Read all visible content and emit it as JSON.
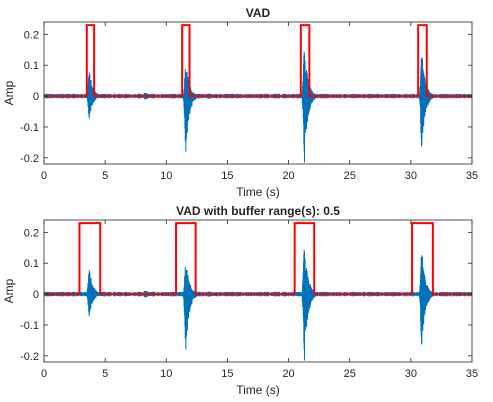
{
  "chart_data": [
    {
      "type": "line",
      "title": "VAD",
      "xlabel": "Time (s)",
      "ylabel": "Amp",
      "xlim": [
        0,
        35
      ],
      "ylim": [
        -0.22,
        0.24
      ],
      "xticks": [
        "0",
        "5",
        "10",
        "15",
        "20",
        "25",
        "30",
        "35"
      ],
      "yticks": [
        "-0.2",
        "-0.1",
        "0",
        "0.1",
        "0.2"
      ],
      "series": [
        {
          "color": "#0072bd",
          "kind": "waveform",
          "noise_amplitude": 0.005,
          "bursts": [
            {
              "t": 3.7,
              "peak_pos": 0.09,
              "peak_neg": -0.08
            },
            {
              "t": 11.6,
              "peak_pos": 0.12,
              "peak_neg": -0.19
            },
            {
              "t": 21.3,
              "peak_pos": 0.17,
              "peak_neg": -0.22
            },
            {
              "t": 30.9,
              "peak_pos": 0.15,
              "peak_neg": -0.18
            }
          ],
          "small_events": [
            {
              "t": 8.3,
              "peak": 0.01
            },
            {
              "t": 13.5,
              "peak": 0.008
            },
            {
              "t": 15.9,
              "peak": 0.006
            }
          ]
        },
        {
          "color": "#ff0000",
          "kind": "step",
          "low": 0,
          "high": 0.23,
          "segments": [
            [
              3.5,
              4.1
            ],
            [
              11.3,
              11.9
            ],
            [
              21.0,
              21.7
            ],
            [
              30.6,
              31.3
            ]
          ]
        }
      ]
    },
    {
      "type": "line",
      "title": "VAD with buffer range(s): 0.5",
      "xlabel": "Time (s)",
      "ylabel": "Amp",
      "xlim": [
        0,
        35
      ],
      "ylim": [
        -0.22,
        0.24
      ],
      "xticks": [
        "0",
        "5",
        "10",
        "15",
        "20",
        "25",
        "30",
        "35"
      ],
      "yticks": [
        "-0.2",
        "-0.1",
        "0",
        "0.1",
        "0.2"
      ],
      "series": [
        {
          "color": "#0072bd",
          "kind": "waveform",
          "noise_amplitude": 0.005,
          "bursts": [
            {
              "t": 3.7,
              "peak_pos": 0.09,
              "peak_neg": -0.08
            },
            {
              "t": 11.6,
              "peak_pos": 0.12,
              "peak_neg": -0.19
            },
            {
              "t": 21.3,
              "peak_pos": 0.17,
              "peak_neg": -0.22
            },
            {
              "t": 30.9,
              "peak_pos": 0.15,
              "peak_neg": -0.18
            }
          ],
          "small_events": [
            {
              "t": 8.3,
              "peak": 0.01
            },
            {
              "t": 13.5,
              "peak": 0.008
            },
            {
              "t": 15.9,
              "peak": 0.006
            }
          ]
        },
        {
          "color": "#ff0000",
          "kind": "step",
          "low": 0,
          "high": 0.23,
          "segments": [
            [
              2.9,
              4.6
            ],
            [
              10.8,
              12.4
            ],
            [
              20.5,
              22.1
            ],
            [
              30.1,
              31.8
            ]
          ]
        }
      ]
    }
  ]
}
